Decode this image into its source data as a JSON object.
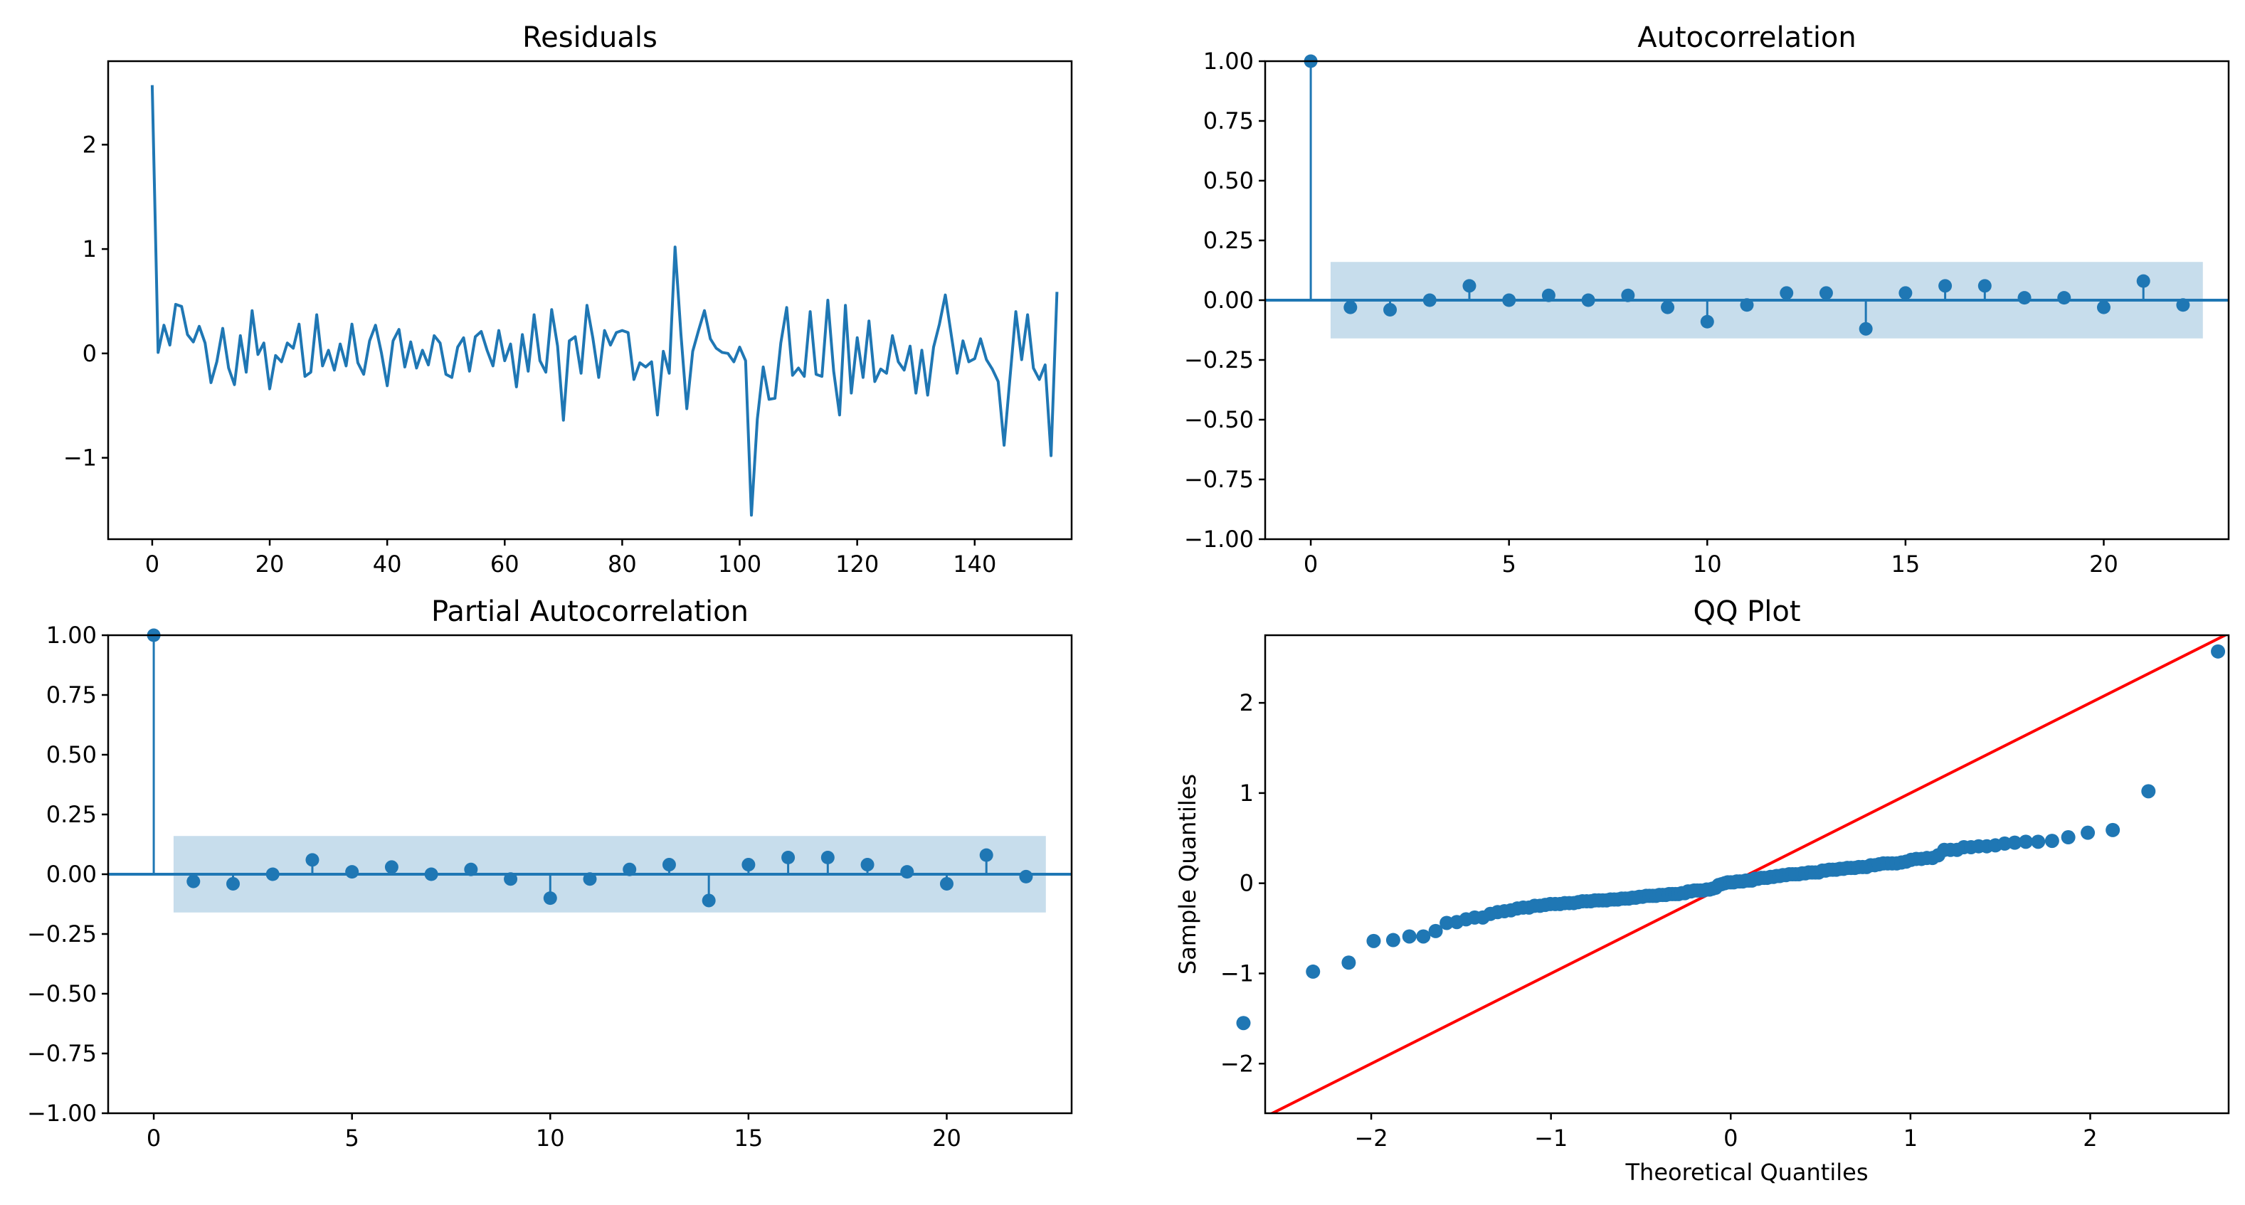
{
  "chart_data": [
    {
      "id": "residuals",
      "type": "line",
      "title": "Residuals",
      "xlabel": "",
      "ylabel": "",
      "xlim": [
        -7.5,
        156.5
      ],
      "ylim": [
        -1.78,
        2.8
      ],
      "xticks": [
        0,
        20,
        40,
        60,
        80,
        100,
        120,
        140
      ],
      "yticks": [
        -1,
        0,
        1,
        2
      ],
      "color": "#1f77b4",
      "grid": false,
      "series": [
        {
          "values": [
            2.57,
            0.01,
            0.27,
            0.08,
            0.47,
            0.45,
            0.18,
            0.11,
            0.26,
            0.1,
            -0.28,
            -0.08,
            0.24,
            -0.14,
            -0.3,
            0.17,
            -0.18,
            0.41,
            -0.01,
            0.1,
            -0.34,
            -0.02,
            -0.08,
            0.1,
            0.05,
            0.28,
            -0.22,
            -0.18,
            0.37,
            -0.12,
            0.03,
            -0.16,
            0.09,
            -0.12,
            0.28,
            -0.09,
            -0.2,
            0.12,
            0.27,
            0.01,
            -0.31,
            0.12,
            0.23,
            -0.13,
            0.11,
            -0.14,
            0.03,
            -0.11,
            0.17,
            0.1,
            -0.2,
            -0.23,
            0.06,
            0.15,
            -0.17,
            0.16,
            0.21,
            0.03,
            -0.12,
            0.22,
            -0.07,
            0.09,
            -0.32,
            0.18,
            -0.17,
            0.37,
            -0.07,
            -0.18,
            0.42,
            0.07,
            -0.64,
            0.12,
            0.16,
            -0.19,
            0.46,
            0.15,
            -0.23,
            0.22,
            0.08,
            0.2,
            0.22,
            0.2,
            -0.25,
            -0.09,
            -0.13,
            -0.08,
            -0.59,
            0.02,
            -0.19,
            1.02,
            0.18,
            -0.53,
            0.02,
            0.22,
            0.41,
            0.14,
            0.05,
            0.01,
            0.0,
            -0.08,
            0.06,
            -0.07,
            -1.55,
            -0.63,
            -0.13,
            -0.44,
            -0.43,
            0.1,
            0.44,
            -0.21,
            -0.14,
            -0.22,
            0.4,
            -0.2,
            -0.22,
            0.51,
            -0.17,
            -0.59,
            0.46,
            -0.38,
            0.15,
            -0.23,
            0.31,
            -0.27,
            -0.15,
            -0.19,
            0.17,
            -0.08,
            -0.16,
            0.07,
            -0.38,
            0.03,
            -0.4,
            0.06,
            0.28,
            0.56,
            0.18,
            -0.19,
            0.12,
            -0.08,
            -0.05,
            0.14,
            -0.06,
            -0.15,
            -0.27,
            -0.88,
            -0.24,
            0.4,
            -0.06,
            0.37,
            -0.14,
            -0.25,
            -0.11,
            -0.98,
            0.59
          ]
        }
      ]
    },
    {
      "id": "acf",
      "type": "stem",
      "title": "Autocorrelation",
      "xlabel": "",
      "ylabel": "",
      "xlim": [
        -1.15,
        23.15
      ],
      "ylim": [
        -1.0,
        1.0
      ],
      "xticks": [
        0,
        5,
        10,
        15,
        20
      ],
      "yticks": [
        -1.0,
        -0.75,
        -0.5,
        -0.25,
        0.0,
        0.25,
        0.5,
        0.75,
        1.0
      ],
      "ytick_labels": [
        "−1.00",
        "−0.75",
        "−0.50",
        "−0.25",
        "0.00",
        "0.25",
        "0.50",
        "0.75",
        "1.00"
      ],
      "color": "#1f77b4",
      "band_color": "#1f77b4",
      "confidence_band": 0.16,
      "band_range": [
        0.5,
        22.5
      ],
      "lags": [
        0,
        1,
        2,
        3,
        4,
        5,
        6,
        7,
        8,
        9,
        10,
        11,
        12,
        13,
        14,
        15,
        16,
        17,
        18,
        19,
        20,
        21,
        22
      ],
      "values": [
        1.0,
        -0.03,
        -0.04,
        0.0,
        0.06,
        0.0,
        0.02,
        0.0,
        0.02,
        -0.03,
        -0.09,
        -0.02,
        0.03,
        0.03,
        -0.12,
        0.03,
        0.06,
        0.06,
        0.01,
        0.01,
        -0.03,
        0.08,
        -0.02
      ]
    },
    {
      "id": "pacf",
      "type": "stem",
      "title": "Partial Autocorrelation",
      "xlabel": "",
      "ylabel": "",
      "xlim": [
        -1.15,
        23.15
      ],
      "ylim": [
        -1.0,
        1.0
      ],
      "xticks": [
        0,
        5,
        10,
        15,
        20
      ],
      "yticks": [
        -1.0,
        -0.75,
        -0.5,
        -0.25,
        0.0,
        0.25,
        0.5,
        0.75,
        1.0
      ],
      "ytick_labels": [
        "−1.00",
        "−0.75",
        "−0.50",
        "−0.25",
        "0.00",
        "0.25",
        "0.50",
        "0.75",
        "1.00"
      ],
      "color": "#1f77b4",
      "band_color": "#1f77b4",
      "confidence_band": 0.16,
      "band_range": [
        0.5,
        22.5
      ],
      "lags": [
        0,
        1,
        2,
        3,
        4,
        5,
        6,
        7,
        8,
        9,
        10,
        11,
        12,
        13,
        14,
        15,
        16,
        17,
        18,
        19,
        20,
        21,
        22
      ],
      "values": [
        1.0,
        -0.03,
        -0.04,
        0.0,
        0.06,
        0.01,
        0.03,
        0.0,
        0.02,
        -0.02,
        -0.1,
        -0.02,
        0.02,
        0.04,
        -0.11,
        0.04,
        0.07,
        0.07,
        0.04,
        0.01,
        -0.04,
        0.08,
        -0.01
      ]
    },
    {
      "id": "qq",
      "type": "scatter",
      "title": "QQ Plot",
      "xlabel": "Theoretical Quantiles",
      "ylabel": "Sample Quantiles",
      "xlim": [
        -2.59,
        2.77
      ],
      "ylim": [
        -2.55,
        2.75
      ],
      "xticks": [
        -2,
        -1,
        0,
        1,
        2
      ],
      "yticks": [
        -2,
        -1,
        0,
        1,
        2
      ],
      "color": "#1f77b4",
      "reference_line": {
        "slope": 1,
        "intercept": 0,
        "color": "#ff0000"
      },
      "sample_quantiles": [
        2.57,
        1.02,
        0.59,
        0.56,
        0.51,
        0.47,
        0.46,
        0.46,
        0.45,
        0.44,
        0.42,
        0.41,
        0.41,
        0.4,
        0.4,
        0.37,
        0.37,
        0.37,
        0.31,
        0.28,
        0.28,
        0.27,
        0.27,
        0.26,
        0.24,
        0.23,
        0.22,
        0.22,
        0.22,
        0.22,
        0.21,
        0.2,
        0.2,
        0.18,
        0.18,
        0.18,
        0.17,
        0.17,
        0.17,
        0.16,
        0.16,
        0.15,
        0.15,
        0.15,
        0.14,
        0.14,
        0.12,
        0.12,
        0.12,
        0.12,
        0.11,
        0.11,
        0.1,
        0.1,
        0.1,
        0.1,
        0.09,
        0.09,
        0.08,
        0.08,
        0.07,
        0.07,
        0.06,
        0.06,
        0.06,
        0.05,
        0.05,
        0.03,
        0.03,
        0.03,
        0.02,
        0.02,
        0.02,
        0.01,
        0.01,
        0.01,
        0.0,
        -0.01,
        -0.02,
        -0.05,
        -0.06,
        -0.07,
        -0.07,
        -0.08,
        -0.08,
        -0.08,
        -0.08,
        -0.09,
        -0.09,
        -0.11,
        -0.11,
        -0.12,
        -0.12,
        -0.12,
        -0.12,
        -0.13,
        -0.13,
        -0.13,
        -0.14,
        -0.14,
        -0.14,
        -0.14,
        -0.15,
        -0.15,
        -0.16,
        -0.16,
        -0.17,
        -0.17,
        -0.17,
        -0.18,
        -0.18,
        -0.18,
        -0.19,
        -0.19,
        -0.19,
        -0.19,
        -0.2,
        -0.2,
        -0.2,
        -0.21,
        -0.22,
        -0.22,
        -0.22,
        -0.23,
        -0.23,
        -0.23,
        -0.24,
        -0.25,
        -0.25,
        -0.27,
        -0.27,
        -0.28,
        -0.3,
        -0.31,
        -0.32,
        -0.34,
        -0.38,
        -0.38,
        -0.4,
        -0.43,
        -0.44,
        -0.53,
        -0.59,
        -0.59,
        -0.63,
        -0.64,
        -0.88,
        -0.98,
        -1.55
      ]
    }
  ]
}
